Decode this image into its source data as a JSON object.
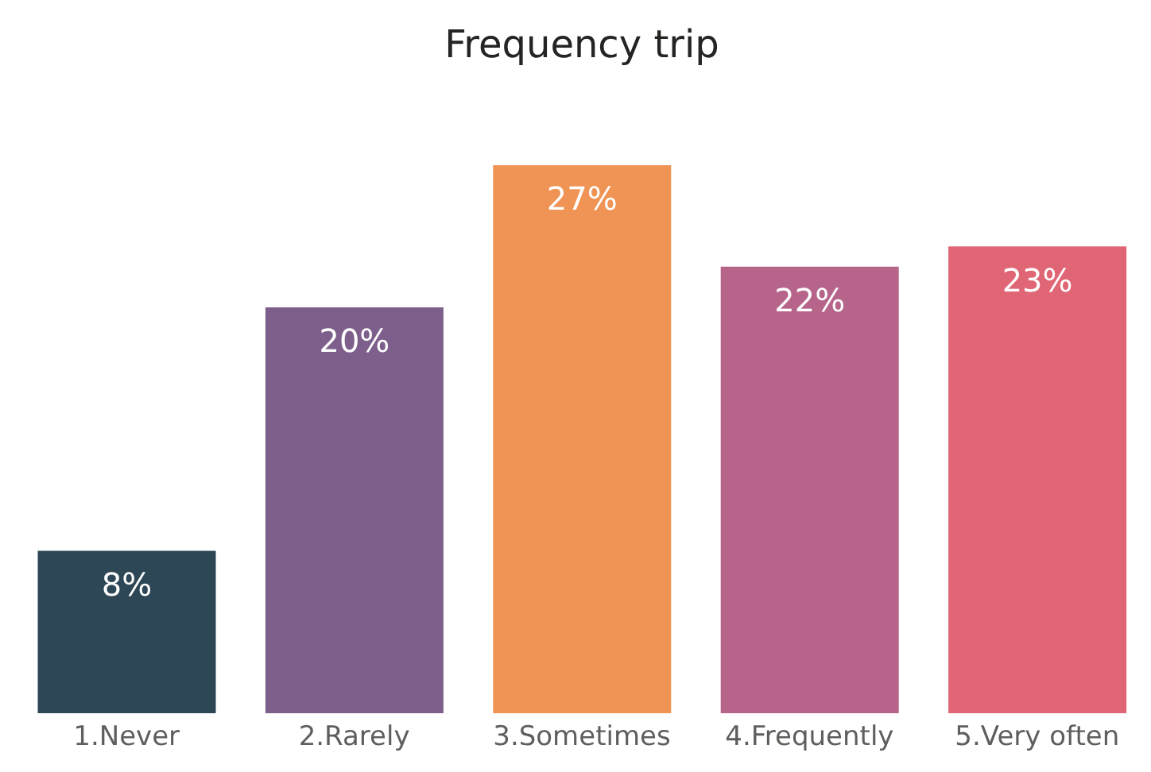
{
  "chart_data": {
    "type": "bar",
    "title": "Frequency trip",
    "categories": [
      "1.Never",
      "2.Rarely",
      "3.Sometimes",
      "4.Frequently",
      "5.Very often"
    ],
    "values": [
      8,
      20,
      27,
      22,
      23
    ],
    "value_labels": [
      "8%",
      "20%",
      "27%",
      "22%",
      "23%"
    ],
    "colors": [
      "#2e4756",
      "#7e5f8c",
      "#f09455",
      "#b7648a",
      "#e06675"
    ]
  }
}
